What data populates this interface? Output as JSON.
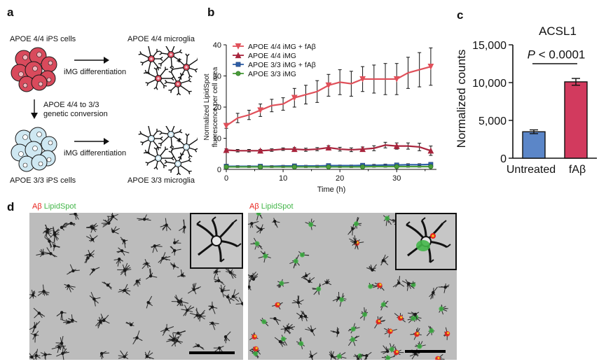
{
  "panel_a": {
    "letter": "a",
    "top_ips_label": "APOE 4/4 iPS cells",
    "top_microglia_label": "APOE 4/4 microglia",
    "top_diff_label": "iMG differentiation",
    "conversion_line1": "APOE 4/4 to 3/3",
    "conversion_line2": "genetic conversion",
    "bottom_diff_label": "iMG differentiation",
    "bottom_ips_label": "APOE 3/3 iPS cells",
    "bottom_microglia_label": "APOE 3/3 microglia",
    "colors": {
      "apoe44": "#d94a5c",
      "apoe33": "#cfe8f2",
      "outline": "#1a1a1a"
    }
  },
  "panel_b": {
    "letter": "b",
    "ylabel_line1": "Normalized LipidSpot",
    "ylabel_line2": "fluorescence per cell area",
    "xlabel": "Time (h)",
    "y_ticks": [
      "0",
      "10",
      "20",
      "30",
      "40"
    ],
    "x_ticks": [
      "0",
      "10",
      "20",
      "30"
    ]
  },
  "panel_c": {
    "letter": "c",
    "title": "ACSL1",
    "ylabel": "Normalized counts",
    "pvalue_p": "P",
    "pvalue_rest": " < 0.0001",
    "y_ticks": [
      "0",
      "5,000",
      "10,000",
      "15,000"
    ],
    "categories": [
      "Untreated",
      "fAβ"
    ]
  },
  "panel_d": {
    "letter": "d",
    "left_label_ab": "Aβ",
    "left_label_lipid": "LipidSpot",
    "right_label_ab": "Aβ",
    "right_label_lipid": "LipidSpot",
    "colors": {
      "ab": "#e8231d",
      "lipid": "#43b649"
    }
  },
  "chart_data": [
    {
      "type": "line",
      "x_label": "Time (h)",
      "y_label": "Normalized LipidSpot fluorescence per cell area",
      "xlim": [
        0,
        37
      ],
      "ylim": [
        0,
        40
      ],
      "legend_position": "top-left",
      "grid": false,
      "x": [
        0,
        2,
        4,
        6,
        8,
        10,
        12,
        14,
        16,
        18,
        20,
        22,
        24,
        26,
        28,
        30,
        32,
        34,
        36
      ],
      "series": [
        {
          "name": "APOE 4/4 iMG + fAβ",
          "marker": "triangle-down",
          "color": "#e0505a",
          "values": [
            14,
            16.5,
            17.5,
            19,
            20.5,
            21,
            23,
            24,
            25,
            27,
            28,
            27.5,
            29,
            29,
            29,
            29,
            31,
            32,
            33
          ],
          "errors": [
            0.8,
            1.5,
            1.5,
            2,
            2,
            2,
            3,
            3,
            3.5,
            3.5,
            4,
            4,
            4,
            4.5,
            5,
            5,
            5,
            5.5,
            6
          ]
        },
        {
          "name": "APOE 4/4 iMG",
          "marker": "triangle-up",
          "color": "#a8253d",
          "values": [
            6.2,
            6.0,
            6.0,
            6.0,
            6.2,
            6.5,
            6.5,
            6.3,
            6.5,
            7.0,
            6.5,
            6.3,
            6.5,
            6.8,
            7.8,
            7.5,
            7.5,
            7.2,
            6.0
          ],
          "errors": [
            0.4,
            0.4,
            0.4,
            0.4,
            0.4,
            0.4,
            0.5,
            0.5,
            0.5,
            0.6,
            0.6,
            0.6,
            0.7,
            0.8,
            0.9,
            1.0,
            1.0,
            1.2,
            1.5
          ]
        },
        {
          "name": "APOE 3/3 iMG + fAβ",
          "marker": "square",
          "color": "#2f5fa8",
          "values": [
            1.0,
            1.0,
            1.0,
            1.0,
            1.0,
            1.1,
            1.1,
            1.1,
            1.1,
            1.2,
            1.2,
            1.2,
            1.3,
            1.3,
            1.4,
            1.4,
            1.5,
            1.5,
            1.6
          ],
          "errors": [
            0.2,
            0.2,
            0.2,
            0.2,
            0.2,
            0.2,
            0.2,
            0.2,
            0.2,
            0.2,
            0.2,
            0.2,
            0.3,
            0.3,
            0.3,
            0.3,
            0.3,
            0.3,
            0.3
          ]
        },
        {
          "name": "APOE 3/3 iMG",
          "marker": "circle",
          "color": "#4a9d3a",
          "values": [
            0.8,
            0.8,
            0.8,
            0.8,
            0.8,
            0.8,
            0.8,
            0.8,
            0.8,
            0.8,
            0.8,
            0.8,
            0.8,
            0.9,
            0.9,
            0.9,
            0.9,
            0.9,
            0.9
          ],
          "errors": [
            0.2,
            0.2,
            0.2,
            0.2,
            0.2,
            0.2,
            0.2,
            0.2,
            0.2,
            0.2,
            0.2,
            0.2,
            0.2,
            0.2,
            0.2,
            0.2,
            0.2,
            0.2,
            0.2
          ]
        }
      ]
    },
    {
      "type": "bar",
      "title": "ACSL1",
      "ylabel": "Normalized counts",
      "ylim": [
        0,
        15000
      ],
      "categories": [
        "Untreated",
        "fAβ"
      ],
      "values": [
        3500,
        10100
      ],
      "errors": [
        250,
        450
      ],
      "colors": [
        "#5b86c8",
        "#d23a5e"
      ],
      "annotation": "P < 0.0001"
    }
  ]
}
